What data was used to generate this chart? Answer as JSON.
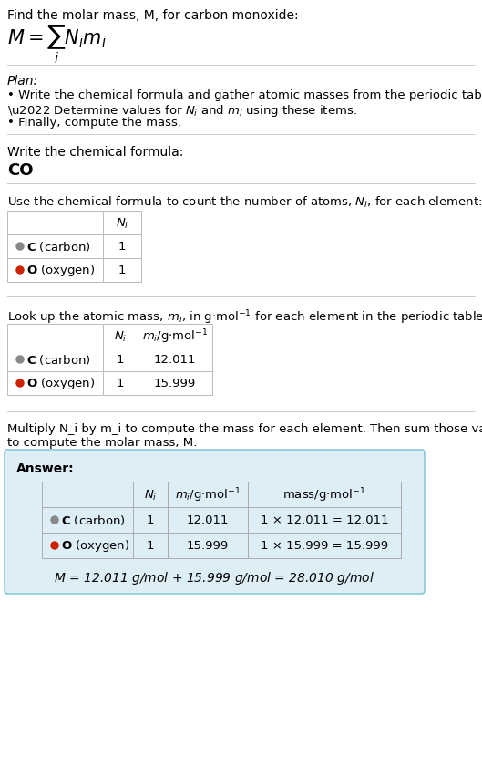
{
  "title_line": "Find the molar mass, M, for carbon monoxide:",
  "bg_color": "#ffffff",
  "section_bg": "#ddeef6",
  "answer_border": "#7bbfd4",
  "table_border_color": "#bbbbbb",
  "plan_header": "Plan:",
  "formula_label": "Write the chemical formula:",
  "chemical_formula": "CO",
  "count_label": "Use the chemical formula to count the number of atoms, N_i, for each element:",
  "lookup_label": "Look up the atomic mass, m_i, in g·mol^{-1} for each element in the periodic table:",
  "multiply_label": "Multiply N_i by m_i to compute the mass for each element. Then sum those values\nto compute the molar mass, M:",
  "answer_label": "Answer:",
  "elements": [
    {
      "symbol": "C",
      "name": "carbon",
      "color": "#888888",
      "Ni": "1",
      "mi": "12.011",
      "mass_eq": "1 × 12.011 = 12.011"
    },
    {
      "symbol": "O",
      "name": "oxygen",
      "color": "#cc2200",
      "Ni": "1",
      "mi": "15.999",
      "mass_eq": "1 × 15.999 = 15.999"
    }
  ],
  "final_eq": "M = 12.011 g/mol + 15.999 g/mol = 28.010 g/mol",
  "separator_color": "#cccccc",
  "text_color": "#000000"
}
